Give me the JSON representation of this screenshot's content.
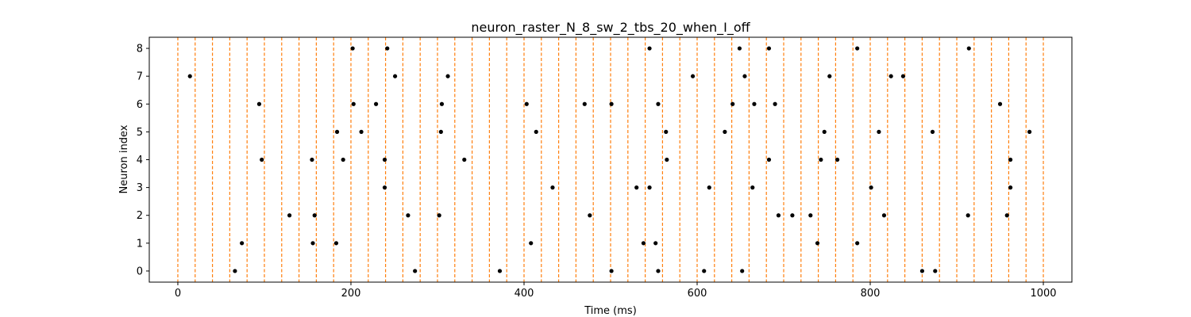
{
  "chart_data": {
    "type": "scatter",
    "title": "neuron_raster_N_8_sw_2_tbs_20_when_I_off",
    "xlabel": "Time (ms)",
    "ylabel": "Neuron index",
    "xlim": [
      -33,
      1033
    ],
    "ylim": [
      -0.4,
      8.4
    ],
    "xticks": [
      0,
      200,
      400,
      600,
      800,
      1000
    ],
    "yticks": [
      0,
      1,
      2,
      3,
      4,
      5,
      6,
      7,
      8
    ],
    "grid": false,
    "marker_color": "#000000",
    "vline_color": "#ff7f0e",
    "vlines_x": [
      0,
      20,
      40,
      60,
      80,
      100,
      120,
      140,
      160,
      180,
      200,
      220,
      240,
      260,
      280,
      300,
      320,
      340,
      360,
      380,
      400,
      420,
      440,
      460,
      480,
      500,
      520,
      540,
      560,
      580,
      600,
      620,
      640,
      660,
      680,
      700,
      720,
      740,
      760,
      780,
      800,
      820,
      840,
      860,
      880,
      900,
      920,
      940,
      960,
      980,
      1000
    ],
    "spikes": [
      {
        "neuron": 0,
        "times": [
          66,
          274,
          372,
          501,
          555,
          608,
          652,
          860,
          875
        ]
      },
      {
        "neuron": 1,
        "times": [
          74,
          156,
          183,
          408,
          538,
          552,
          739,
          785
        ]
      },
      {
        "neuron": 2,
        "times": [
          129,
          158,
          266,
          302,
          476,
          694,
          710,
          731,
          816,
          913,
          958
        ]
      },
      {
        "neuron": 3,
        "times": [
          239,
          433,
          530,
          545,
          614,
          664,
          801,
          962
        ]
      },
      {
        "neuron": 4,
        "times": [
          97,
          155,
          191,
          239,
          331,
          565,
          683,
          743,
          762,
          962
        ]
      },
      {
        "neuron": 5,
        "times": [
          184,
          212,
          304,
          414,
          564,
          632,
          747,
          810,
          872,
          984
        ]
      },
      {
        "neuron": 6,
        "times": [
          94,
          203,
          229,
          305,
          403,
          470,
          501,
          555,
          641,
          666,
          690,
          950
        ]
      },
      {
        "neuron": 7,
        "times": [
          14,
          251,
          312,
          595,
          655,
          753,
          824,
          838
        ]
      },
      {
        "neuron": 8,
        "times": [
          202,
          242,
          545,
          649,
          683,
          785,
          914
        ]
      }
    ]
  }
}
